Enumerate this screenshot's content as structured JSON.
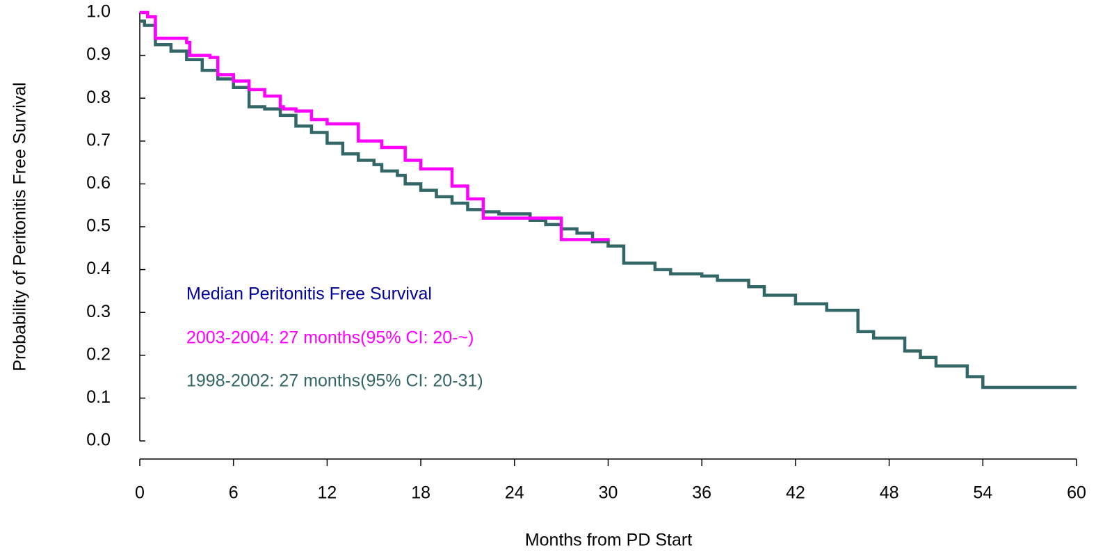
{
  "chart_data": {
    "type": "step",
    "xlabel": "Months from PD Start",
    "ylabel": "Probability of Peritonitis Free Survival",
    "annotation": {
      "text": "Median Peritonitis Free Survival",
      "color": "#000099"
    },
    "xlim": [
      0,
      60
    ],
    "xticks": [
      0,
      6,
      12,
      18,
      24,
      30,
      36,
      42,
      48,
      54,
      60
    ],
    "ylim": [
      0,
      1
    ],
    "yticks": [
      {
        "value": 0,
        "label": "0.0"
      },
      0.1,
      0.2,
      0.3,
      0.4,
      0.5,
      0.6,
      0.7,
      0.8,
      0.9,
      {
        "value": 1,
        "label": "1.0"
      }
    ],
    "series": [
      {
        "name": "2003-2004: 27 months(95% CI: 20-~)",
        "color": "#ff00ff",
        "x": [
          0,
          0.5,
          1,
          3,
          3.2,
          4.5,
          5,
          6,
          7,
          8,
          9,
          9.2,
          10,
          11,
          12,
          14,
          15.5,
          17,
          18,
          20,
          21,
          22,
          27,
          30.1
        ],
        "values": [
          1.0,
          0.99,
          0.94,
          0.93,
          0.9,
          0.895,
          0.855,
          0.84,
          0.82,
          0.805,
          0.78,
          0.775,
          0.77,
          0.75,
          0.74,
          0.7,
          0.685,
          0.655,
          0.635,
          0.595,
          0.565,
          0.52,
          0.47,
          0.47
        ]
      },
      {
        "name": "1998-2002: 27 months(95% CI: 20-31)",
        "color": "#336666",
        "x": [
          0,
          0.3,
          1,
          2,
          3,
          4,
          5,
          6,
          7,
          8,
          9,
          10,
          11,
          12,
          13,
          14,
          15,
          15.5,
          16.5,
          17,
          18,
          19,
          20,
          21,
          22,
          23,
          25,
          26,
          27,
          28,
          29,
          30,
          31,
          33,
          34,
          36,
          37,
          39,
          40,
          42,
          44,
          46,
          47,
          49,
          50,
          51,
          53,
          54,
          60
        ],
        "values": [
          0.98,
          0.97,
          0.925,
          0.91,
          0.89,
          0.865,
          0.845,
          0.825,
          0.78,
          0.775,
          0.76,
          0.735,
          0.72,
          0.695,
          0.67,
          0.655,
          0.645,
          0.63,
          0.62,
          0.6,
          0.585,
          0.57,
          0.555,
          0.54,
          0.535,
          0.53,
          0.515,
          0.505,
          0.495,
          0.485,
          0.465,
          0.455,
          0.415,
          0.4,
          0.39,
          0.385,
          0.375,
          0.36,
          0.34,
          0.32,
          0.305,
          0.255,
          0.24,
          0.21,
          0.195,
          0.175,
          0.15,
          0.125,
          0.125
        ]
      }
    ]
  }
}
